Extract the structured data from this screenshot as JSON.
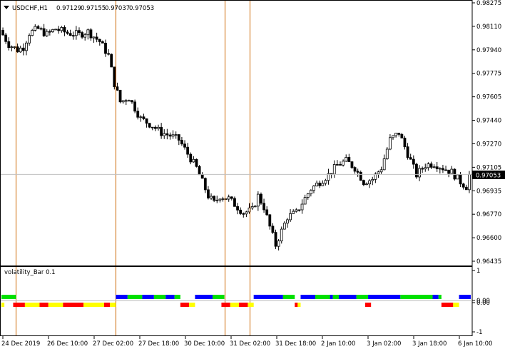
{
  "symbol_title": "USDCHF,H1",
  "ohlc": {
    "open": "0.97129",
    "high": "0.97155",
    "low": "0.97037",
    "close": "0.97053"
  },
  "current_price_label": "0.97053",
  "indicator_title": "volatility_Bar 0.1",
  "colors": {
    "background": "#ffffff",
    "candle": "#000000",
    "bid_line": "#c0c0c0",
    "period_separator": "#cc6600",
    "bar_green": "#00e000",
    "bar_blue": "#0000ff",
    "bar_red": "#ff0000",
    "bar_yellow": "#ffff00",
    "price_label_bg": "#000000",
    "price_label_fg": "#ffffff"
  },
  "chart_data": [
    {
      "type": "candlestick",
      "title": "USDCHF,H1",
      "ylim": [
        0.96435,
        0.98275
      ],
      "y_ticks": [
        "0.98275",
        "0.98110",
        "0.97940",
        "0.97775",
        "0.97605",
        "0.97440",
        "0.97270",
        "0.97105",
        "0.96935",
        "0.96770",
        "0.96600",
        "0.96435"
      ],
      "x_ticks": [
        "24 Dec 2019",
        "26 Dec 10:00",
        "27 Dec 02:00",
        "27 Dec 18:00",
        "30 Dec 10:00",
        "31 Dec 02:00",
        "31 Dec 18:00",
        "2 Jan 10:00",
        "3 Jan 02:00",
        "3 Jan 18:00",
        "6 Jan 10:00"
      ],
      "current_price": 0.97053,
      "close_path": [
        [
          0,
          0.9808
        ],
        [
          3,
          0.9798
        ],
        [
          6,
          0.9794
        ],
        [
          8,
          0.9796
        ],
        [
          10,
          0.9806
        ],
        [
          13,
          0.9809
        ],
        [
          16,
          0.9805
        ],
        [
          19,
          0.9809
        ],
        [
          23,
          0.9806
        ],
        [
          27,
          0.9805
        ],
        [
          30,
          0.9807
        ],
        [
          34,
          0.98
        ],
        [
          37,
          0.979
        ],
        [
          39,
          0.977
        ],
        [
          41,
          0.9757
        ],
        [
          44,
          0.976
        ],
        [
          48,
          0.9745
        ],
        [
          52,
          0.974
        ],
        [
          55,
          0.9735
        ],
        [
          58,
          0.9733
        ],
        [
          61,
          0.973
        ],
        [
          64,
          0.972
        ],
        [
          67,
          0.971
        ],
        [
          69,
          0.97
        ],
        [
          71,
          0.969
        ],
        [
          73,
          0.9685
        ],
        [
          75,
          0.969
        ],
        [
          78,
          0.9688
        ],
        [
          80,
          0.9684
        ],
        [
          83,
          0.9678
        ],
        [
          86,
          0.968
        ],
        [
          88,
          0.969
        ],
        [
          90,
          0.9682
        ],
        [
          92,
          0.9668
        ],
        [
          94,
          0.9655
        ],
        [
          96,
          0.9665
        ],
        [
          98,
          0.9675
        ],
        [
          101,
          0.9678
        ],
        [
          103,
          0.9685
        ],
        [
          106,
          0.9695
        ],
        [
          109,
          0.97
        ],
        [
          112,
          0.9705
        ],
        [
          115,
          0.9712
        ],
        [
          118,
          0.9715
        ],
        [
          121,
          0.971
        ],
        [
          124,
          0.97
        ],
        [
          127,
          0.9702
        ],
        [
          130,
          0.971
        ],
        [
          133,
          0.973
        ],
        [
          136,
          0.9735
        ],
        [
          139,
          0.972
        ],
        [
          142,
          0.9705
        ],
        [
          145,
          0.9712
        ],
        [
          148,
          0.9713
        ],
        [
          151,
          0.971
        ],
        [
          154,
          0.9707
        ],
        [
          157,
          0.97
        ],
        [
          160,
          0.9695
        ]
      ],
      "candle_count": 160,
      "price_range": {
        "low": 0.9647,
        "high": 0.9823
      }
    },
    {
      "type": "bar",
      "title": "volatility_Bar 0.1",
      "ylim": [
        -1,
        1
      ],
      "y_ticks": [
        "1",
        "0.00",
        "0.00",
        "-1"
      ],
      "bands": {
        "upper": [
          {
            "start": 0,
            "end": 5,
            "color": "green"
          },
          {
            "start": 39,
            "end": 43,
            "color": "blue"
          },
          {
            "start": 43,
            "end": 48,
            "color": "green"
          },
          {
            "start": 48,
            "end": 52,
            "color": "blue"
          },
          {
            "start": 52,
            "end": 56,
            "color": "green"
          },
          {
            "start": 56,
            "end": 59,
            "color": "blue"
          },
          {
            "start": 59,
            "end": 61,
            "color": "green"
          },
          {
            "start": 66,
            "end": 72,
            "color": "blue"
          },
          {
            "start": 72,
            "end": 76,
            "color": "green"
          },
          {
            "start": 86,
            "end": 96,
            "color": "blue"
          },
          {
            "start": 96,
            "end": 100,
            "color": "green"
          },
          {
            "start": 102,
            "end": 107,
            "color": "blue"
          },
          {
            "start": 107,
            "end": 112,
            "color": "green"
          },
          {
            "start": 112,
            "end": 113,
            "color": "blue"
          },
          {
            "start": 113,
            "end": 115,
            "color": "green"
          },
          {
            "start": 115,
            "end": 121,
            "color": "blue"
          },
          {
            "start": 121,
            "end": 125,
            "color": "green"
          },
          {
            "start": 125,
            "end": 136,
            "color": "blue"
          },
          {
            "start": 136,
            "end": 147,
            "color": "green"
          },
          {
            "start": 147,
            "end": 149,
            "color": "blue"
          },
          {
            "start": 149,
            "end": 150,
            "color": "green"
          },
          {
            "start": 156,
            "end": 160,
            "color": "blue"
          }
        ],
        "lower": [
          {
            "start": 0,
            "end": 1,
            "color": "yellow"
          },
          {
            "start": 4,
            "end": 8,
            "color": "red"
          },
          {
            "start": 8,
            "end": 13,
            "color": "yellow"
          },
          {
            "start": 13,
            "end": 16,
            "color": "red"
          },
          {
            "start": 16,
            "end": 21,
            "color": "yellow"
          },
          {
            "start": 21,
            "end": 28,
            "color": "red"
          },
          {
            "start": 28,
            "end": 35,
            "color": "yellow"
          },
          {
            "start": 35,
            "end": 37,
            "color": "red"
          },
          {
            "start": 37,
            "end": 39,
            "color": "yellow"
          },
          {
            "start": 61,
            "end": 64,
            "color": "red"
          },
          {
            "start": 64,
            "end": 66,
            "color": "yellow"
          },
          {
            "start": 75,
            "end": 78,
            "color": "red"
          },
          {
            "start": 78,
            "end": 81,
            "color": "yellow"
          },
          {
            "start": 81,
            "end": 84,
            "color": "red"
          },
          {
            "start": 84,
            "end": 86,
            "color": "yellow"
          },
          {
            "start": 100,
            "end": 101,
            "color": "red"
          },
          {
            "start": 101,
            "end": 102,
            "color": "yellow"
          },
          {
            "start": 124,
            "end": 126,
            "color": "red"
          },
          {
            "start": 150,
            "end": 154,
            "color": "red"
          },
          {
            "start": 154,
            "end": 156,
            "color": "yellow"
          }
        ]
      }
    }
  ]
}
